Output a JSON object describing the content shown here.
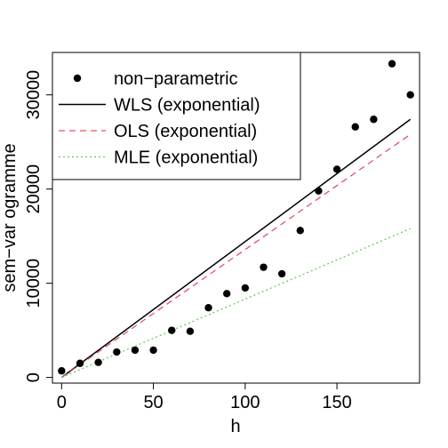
{
  "chart_data": {
    "type": "scatter",
    "title": "",
    "xlabel": "h",
    "ylabel": "sem−var ogramme",
    "xlim": [
      -5,
      195
    ],
    "ylim": [
      -600,
      34500
    ],
    "x_ticks": [
      0,
      50,
      100,
      150
    ],
    "y_ticks": [
      0,
      10000,
      20000,
      30000
    ],
    "grid": false,
    "legend_position": "top-left",
    "series": [
      {
        "name": "non−parametric",
        "kind": "points",
        "color": "#000000",
        "x": [
          0,
          10,
          20,
          30,
          40,
          50,
          60,
          70,
          80,
          90,
          100,
          110,
          120,
          130,
          140,
          150,
          160,
          170,
          180,
          190
        ],
        "y": [
          700,
          1500,
          1600,
          2700,
          2900,
          2900,
          5000,
          4900,
          7400,
          8900,
          9500,
          11700,
          11000,
          15600,
          19800,
          22100,
          26600,
          27400,
          33300,
          30000
        ]
      },
      {
        "name": "WLS (exponential)",
        "kind": "line",
        "style": "solid",
        "color": "#000000",
        "x": [
          0,
          190
        ],
        "y": [
          0,
          27400
        ]
      },
      {
        "name": "OLS (exponential)",
        "kind": "line",
        "style": "dashed",
        "color": "#DF536B",
        "x": [
          0,
          190
        ],
        "y": [
          0,
          25800
        ]
      },
      {
        "name": "MLE (exponential)",
        "kind": "line",
        "style": "dotted",
        "color": "#61D04F",
        "x": [
          0,
          190
        ],
        "y": [
          0,
          15800
        ]
      }
    ]
  }
}
